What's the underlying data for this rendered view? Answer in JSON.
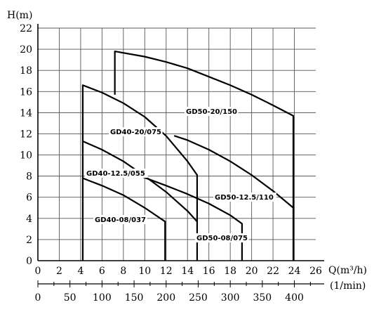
{
  "chart_data": {
    "type": "line",
    "title": "",
    "ylabel": "H(m)",
    "xlabel": "Q(m³/h)",
    "xlabel_secondary": "(1/min)",
    "xlim": [
      0,
      26
    ],
    "ylim": [
      0,
      22
    ],
    "grid": true,
    "x_ticks": [
      "0",
      "2",
      "4",
      "6",
      "8",
      "10",
      "12",
      "14",
      "16",
      "18",
      "20",
      "22",
      "24",
      "26"
    ],
    "y_ticks": [
      "0",
      "2",
      "4",
      "6",
      "8",
      "10",
      "12",
      "14",
      "16",
      "18",
      "20",
      "22"
    ],
    "secondary_x_ticks": [
      "0",
      "50",
      "100",
      "150",
      "200",
      "250",
      "300",
      "350",
      "400"
    ],
    "secondary_x_values": [
      0,
      50,
      100,
      150,
      200,
      250,
      300,
      350,
      400
    ],
    "series": [
      {
        "name": "GD40-08/037",
        "label": "GD40-08/037",
        "points": [
          [
            4.2,
            7.8
          ],
          [
            6,
            7.1
          ],
          [
            8,
            6.2
          ],
          [
            10,
            5.0
          ],
          [
            11.9,
            3.7
          ]
        ],
        "range": [
          4.2,
          11.9
        ]
      },
      {
        "name": "GD40-12.5/055",
        "label": "GD40-12.5/055",
        "points": [
          [
            4.2,
            11.3
          ],
          [
            6,
            10.5
          ],
          [
            8,
            9.4
          ],
          [
            10,
            8.0
          ],
          [
            12,
            6.5
          ],
          [
            14,
            4.7
          ],
          [
            14.9,
            3.7
          ]
        ],
        "range": [
          4.2,
          14.9
        ]
      },
      {
        "name": "GD40-20/075",
        "label": "GD40-20/075",
        "points": [
          [
            4.2,
            16.6
          ],
          [
            6,
            15.9
          ],
          [
            8,
            14.9
          ],
          [
            10,
            13.6
          ],
          [
            12,
            11.8
          ],
          [
            14,
            9.4
          ],
          [
            14.9,
            8.1
          ]
        ],
        "range": [
          4.2,
          14.9
        ]
      },
      {
        "name": "GD50-08/075",
        "label": "GD50-08/075",
        "points": [
          [
            9.6,
            8.0
          ],
          [
            12,
            7.1
          ],
          [
            14,
            6.3
          ],
          [
            16,
            5.4
          ],
          [
            18,
            4.3
          ],
          [
            19.1,
            3.5
          ]
        ],
        "range": [
          9.6,
          19.1
        ]
      },
      {
        "name": "GD50-12.5/110",
        "label": "GD50-12.5/110",
        "points": [
          [
            12.8,
            11.8
          ],
          [
            14,
            11.4
          ],
          [
            16,
            10.5
          ],
          [
            18,
            9.4
          ],
          [
            20,
            8.1
          ],
          [
            22,
            6.6
          ],
          [
            23.9,
            5.0
          ]
        ],
        "range": [
          12.8,
          23.9
        ]
      },
      {
        "name": "GD50-20/150",
        "label": "GD50-20/150",
        "points": [
          [
            7.2,
            19.8
          ],
          [
            10,
            19.3
          ],
          [
            12,
            18.8
          ],
          [
            14,
            18.2
          ],
          [
            16,
            17.4
          ],
          [
            18,
            16.6
          ],
          [
            20,
            15.7
          ],
          [
            22,
            14.7
          ],
          [
            23.9,
            13.7
          ]
        ],
        "range": [
          7.2,
          23.9
        ]
      }
    ],
    "verticals": [
      {
        "x": 4.2,
        "y_top": 16.6
      },
      {
        "x": 7.2,
        "y_top": 19.8,
        "y_bottom": 15.7
      },
      {
        "x": 11.9,
        "y_top": 3.7
      },
      {
        "x": 14.9,
        "y_top": 8.1
      },
      {
        "x": 19.1,
        "y_top": 3.5
      },
      {
        "x": 23.9,
        "y_top": 13.7
      }
    ]
  }
}
